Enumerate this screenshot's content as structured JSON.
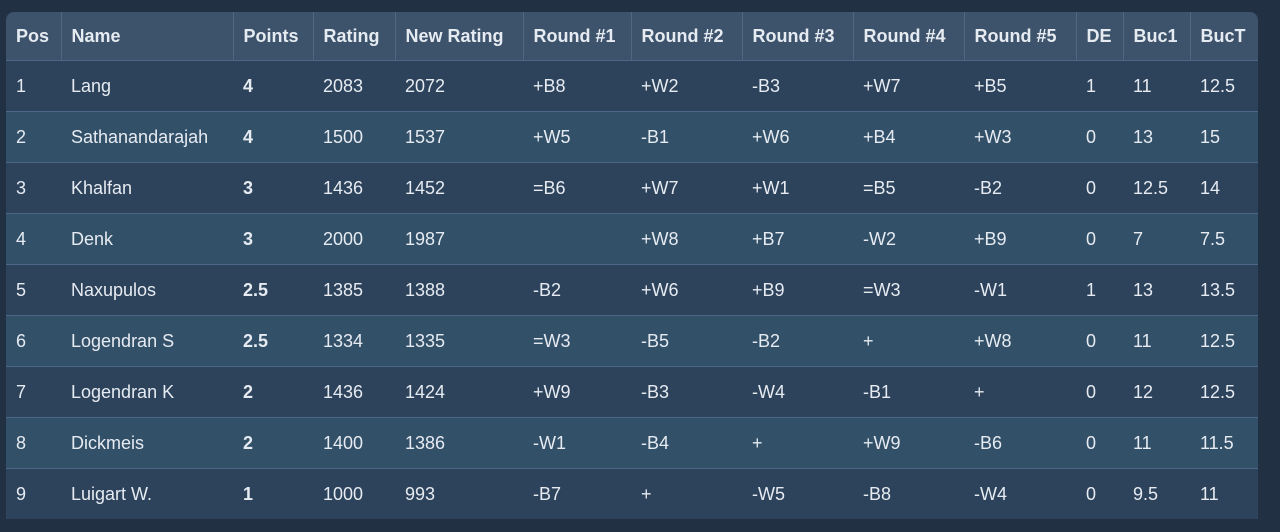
{
  "table": {
    "headers": [
      "Pos",
      "Name",
      "Points",
      "Rating",
      "New Rating",
      "Round #1",
      "Round #2",
      "Round #3",
      "Round #4",
      "Round #5",
      "DE",
      "Buc1",
      "BucT"
    ],
    "rows": [
      [
        "1",
        "Lang",
        "4",
        "2083",
        "2072",
        "+B8",
        "+W2",
        "-B3",
        "+W7",
        "+B5",
        "1",
        "11",
        "12.5"
      ],
      [
        "2",
        "Sathanandarajah",
        "4",
        "1500",
        "1537",
        "+W5",
        "-B1",
        "+W6",
        "+B4",
        "+W3",
        "0",
        "13",
        "15"
      ],
      [
        "3",
        "Khalfan",
        "3",
        "1436",
        "1452",
        "=B6",
        "+W7",
        "+W1",
        "=B5",
        "-B2",
        "0",
        "12.5",
        "14"
      ],
      [
        "4",
        "Denk",
        "3",
        "2000",
        "1987",
        null,
        "+W8",
        "+B7",
        "-W2",
        "+B9",
        "0",
        "7",
        "7.5"
      ],
      [
        "5",
        "Naxupulos",
        "2.5",
        "1385",
        "1388",
        "-B2",
        "+W6",
        "+B9",
        "=W3",
        "-W1",
        "1",
        "13",
        "13.5"
      ],
      [
        "6",
        "Logendran S",
        "2.5",
        "1334",
        "1335",
        "=W3",
        "-B5",
        "-B2",
        "+",
        "+W8",
        "0",
        "11",
        "12.5"
      ],
      [
        "7",
        "Logendran K",
        "2",
        "1436",
        "1424",
        "+W9",
        "-B3",
        "-W4",
        "-B1",
        "+",
        "0",
        "12",
        "12.5"
      ],
      [
        "8",
        "Dickmeis",
        "2",
        "1400",
        "1386",
        "-W1",
        "-B4",
        "+",
        "+W9",
        "-B6",
        "0",
        "11",
        "11.5"
      ],
      [
        "9",
        "Luigart W.",
        "1",
        "1000",
        "993",
        "-B7",
        "+",
        "-W5",
        "-B8",
        "-W4",
        "0",
        "9.5",
        "11"
      ]
    ]
  }
}
